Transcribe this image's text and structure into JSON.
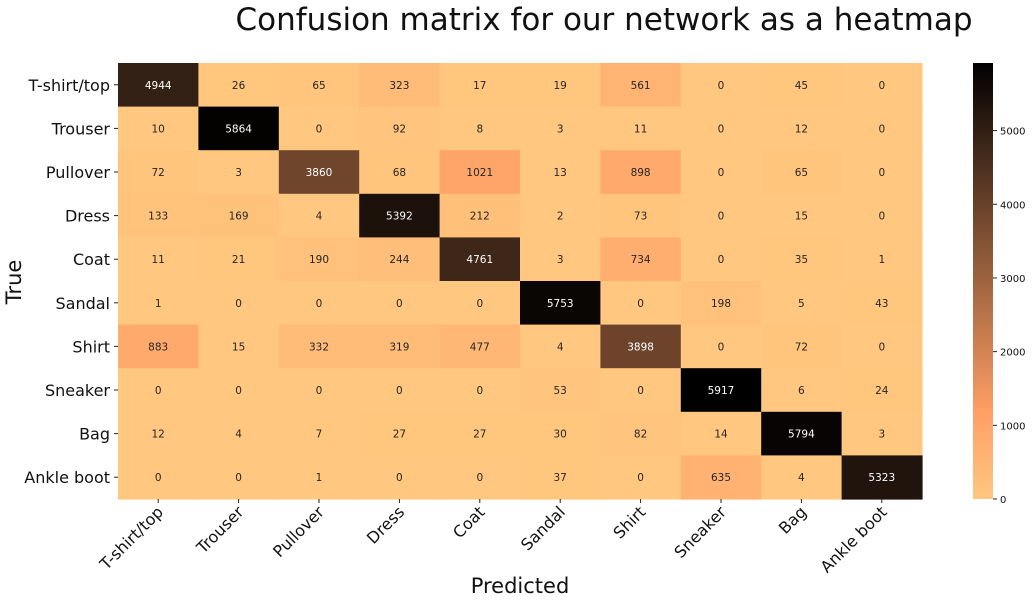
{
  "chart_data": {
    "type": "heatmap",
    "title": "Confusion matrix for our network as a heatmap",
    "xlabel": "Predicted",
    "ylabel": "True",
    "x_categories": [
      "T-shirt/top",
      "Trouser",
      "Pullover",
      "Dress",
      "Coat",
      "Sandal",
      "Shirt",
      "Sneaker",
      "Bag",
      "Ankle boot"
    ],
    "y_categories": [
      "T-shirt/top",
      "Trouser",
      "Pullover",
      "Dress",
      "Coat",
      "Sandal",
      "Shirt",
      "Sneaker",
      "Bag",
      "Ankle boot"
    ],
    "values": [
      [
        4944,
        26,
        65,
        323,
        17,
        19,
        561,
        0,
        45,
        0
      ],
      [
        10,
        5864,
        0,
        92,
        8,
        3,
        11,
        0,
        12,
        0
      ],
      [
        72,
        3,
        3860,
        68,
        1021,
        13,
        898,
        0,
        65,
        0
      ],
      [
        133,
        169,
        4,
        5392,
        212,
        2,
        73,
        0,
        15,
        0
      ],
      [
        11,
        21,
        190,
        244,
        4761,
        3,
        734,
        0,
        35,
        1
      ],
      [
        1,
        0,
        0,
        0,
        0,
        5753,
        0,
        198,
        5,
        43
      ],
      [
        883,
        15,
        332,
        319,
        477,
        4,
        3898,
        0,
        72,
        0
      ],
      [
        0,
        0,
        0,
        0,
        0,
        53,
        0,
        5917,
        6,
        24
      ],
      [
        12,
        4,
        7,
        27,
        27,
        30,
        82,
        14,
        5794,
        3
      ],
      [
        0,
        0,
        1,
        0,
        0,
        37,
        0,
        635,
        4,
        5323
      ]
    ],
    "colormap": "copper_r",
    "colorbar": {
      "range": [
        0,
        5917
      ],
      "ticks": [
        0,
        1000,
        2000,
        3000,
        4000,
        5000
      ]
    }
  }
}
